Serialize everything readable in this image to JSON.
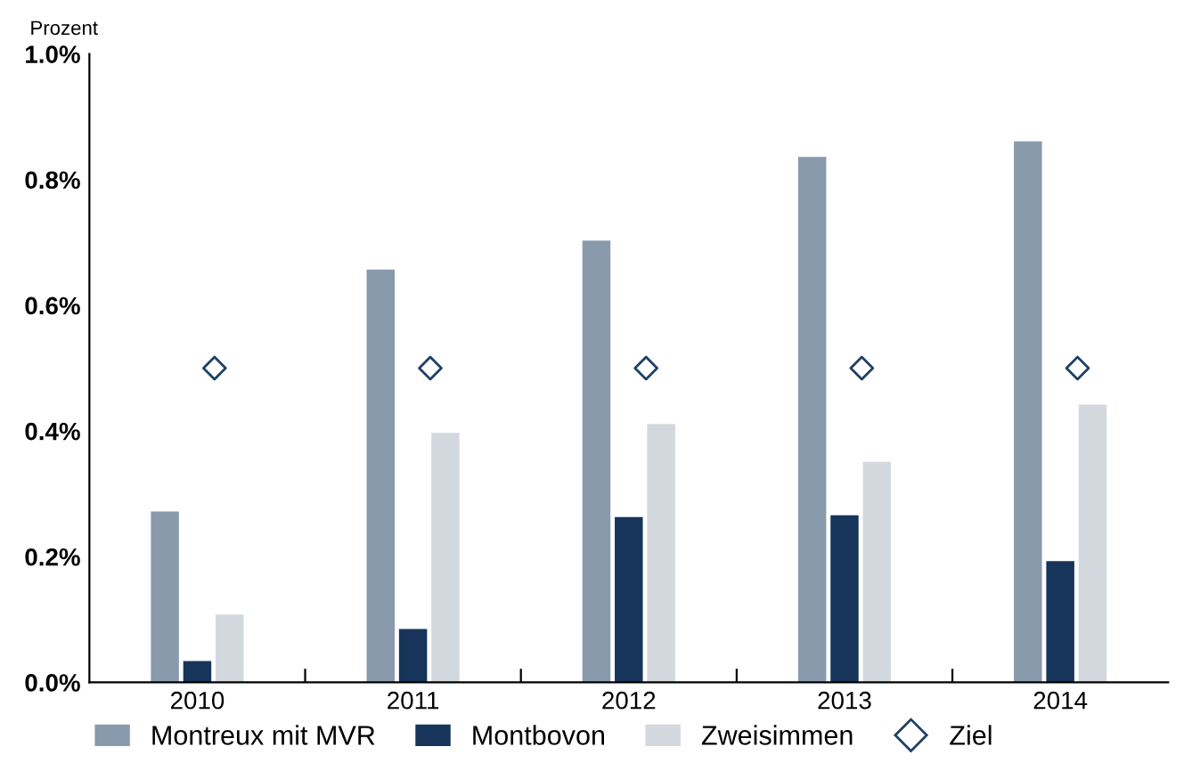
{
  "chart_data": {
    "type": "bar",
    "ylabel": "Prozent",
    "categories": [
      "2010",
      "2011",
      "2012",
      "2013",
      "2014"
    ],
    "series": [
      {
        "name": "Montreux mit MVR",
        "color": "#8a9aad",
        "values": [
          0.272,
          0.657,
          0.703,
          0.836,
          0.861
        ]
      },
      {
        "name": "Montbovon",
        "color": "#17355a",
        "values": [
          0.034,
          0.085,
          0.263,
          0.266,
          0.193
        ]
      },
      {
        "name": "Zweisimmen",
        "color": "#d3d8df",
        "values": [
          0.108,
          0.397,
          0.411,
          0.351,
          0.442
        ]
      },
      {
        "name": "Ziel",
        "type": "scatter",
        "color": "#1f3f66",
        "values": [
          0.5,
          0.5,
          0.5,
          0.5,
          0.5
        ]
      }
    ],
    "ylim": [
      0,
      1.0
    ],
    "yticks": [
      {
        "value": 0,
        "label": "0.0%"
      },
      {
        "value": 0.2,
        "label": "0.2%"
      },
      {
        "value": 0.4,
        "label": "0.4%"
      },
      {
        "value": 0.6,
        "label": "0.6%"
      },
      {
        "value": 0.8,
        "label": "0.8%"
      },
      {
        "value": 1.0,
        "label": "1.0%"
      }
    ],
    "grid": false,
    "legend": "bottom",
    "marker": "diamond"
  }
}
